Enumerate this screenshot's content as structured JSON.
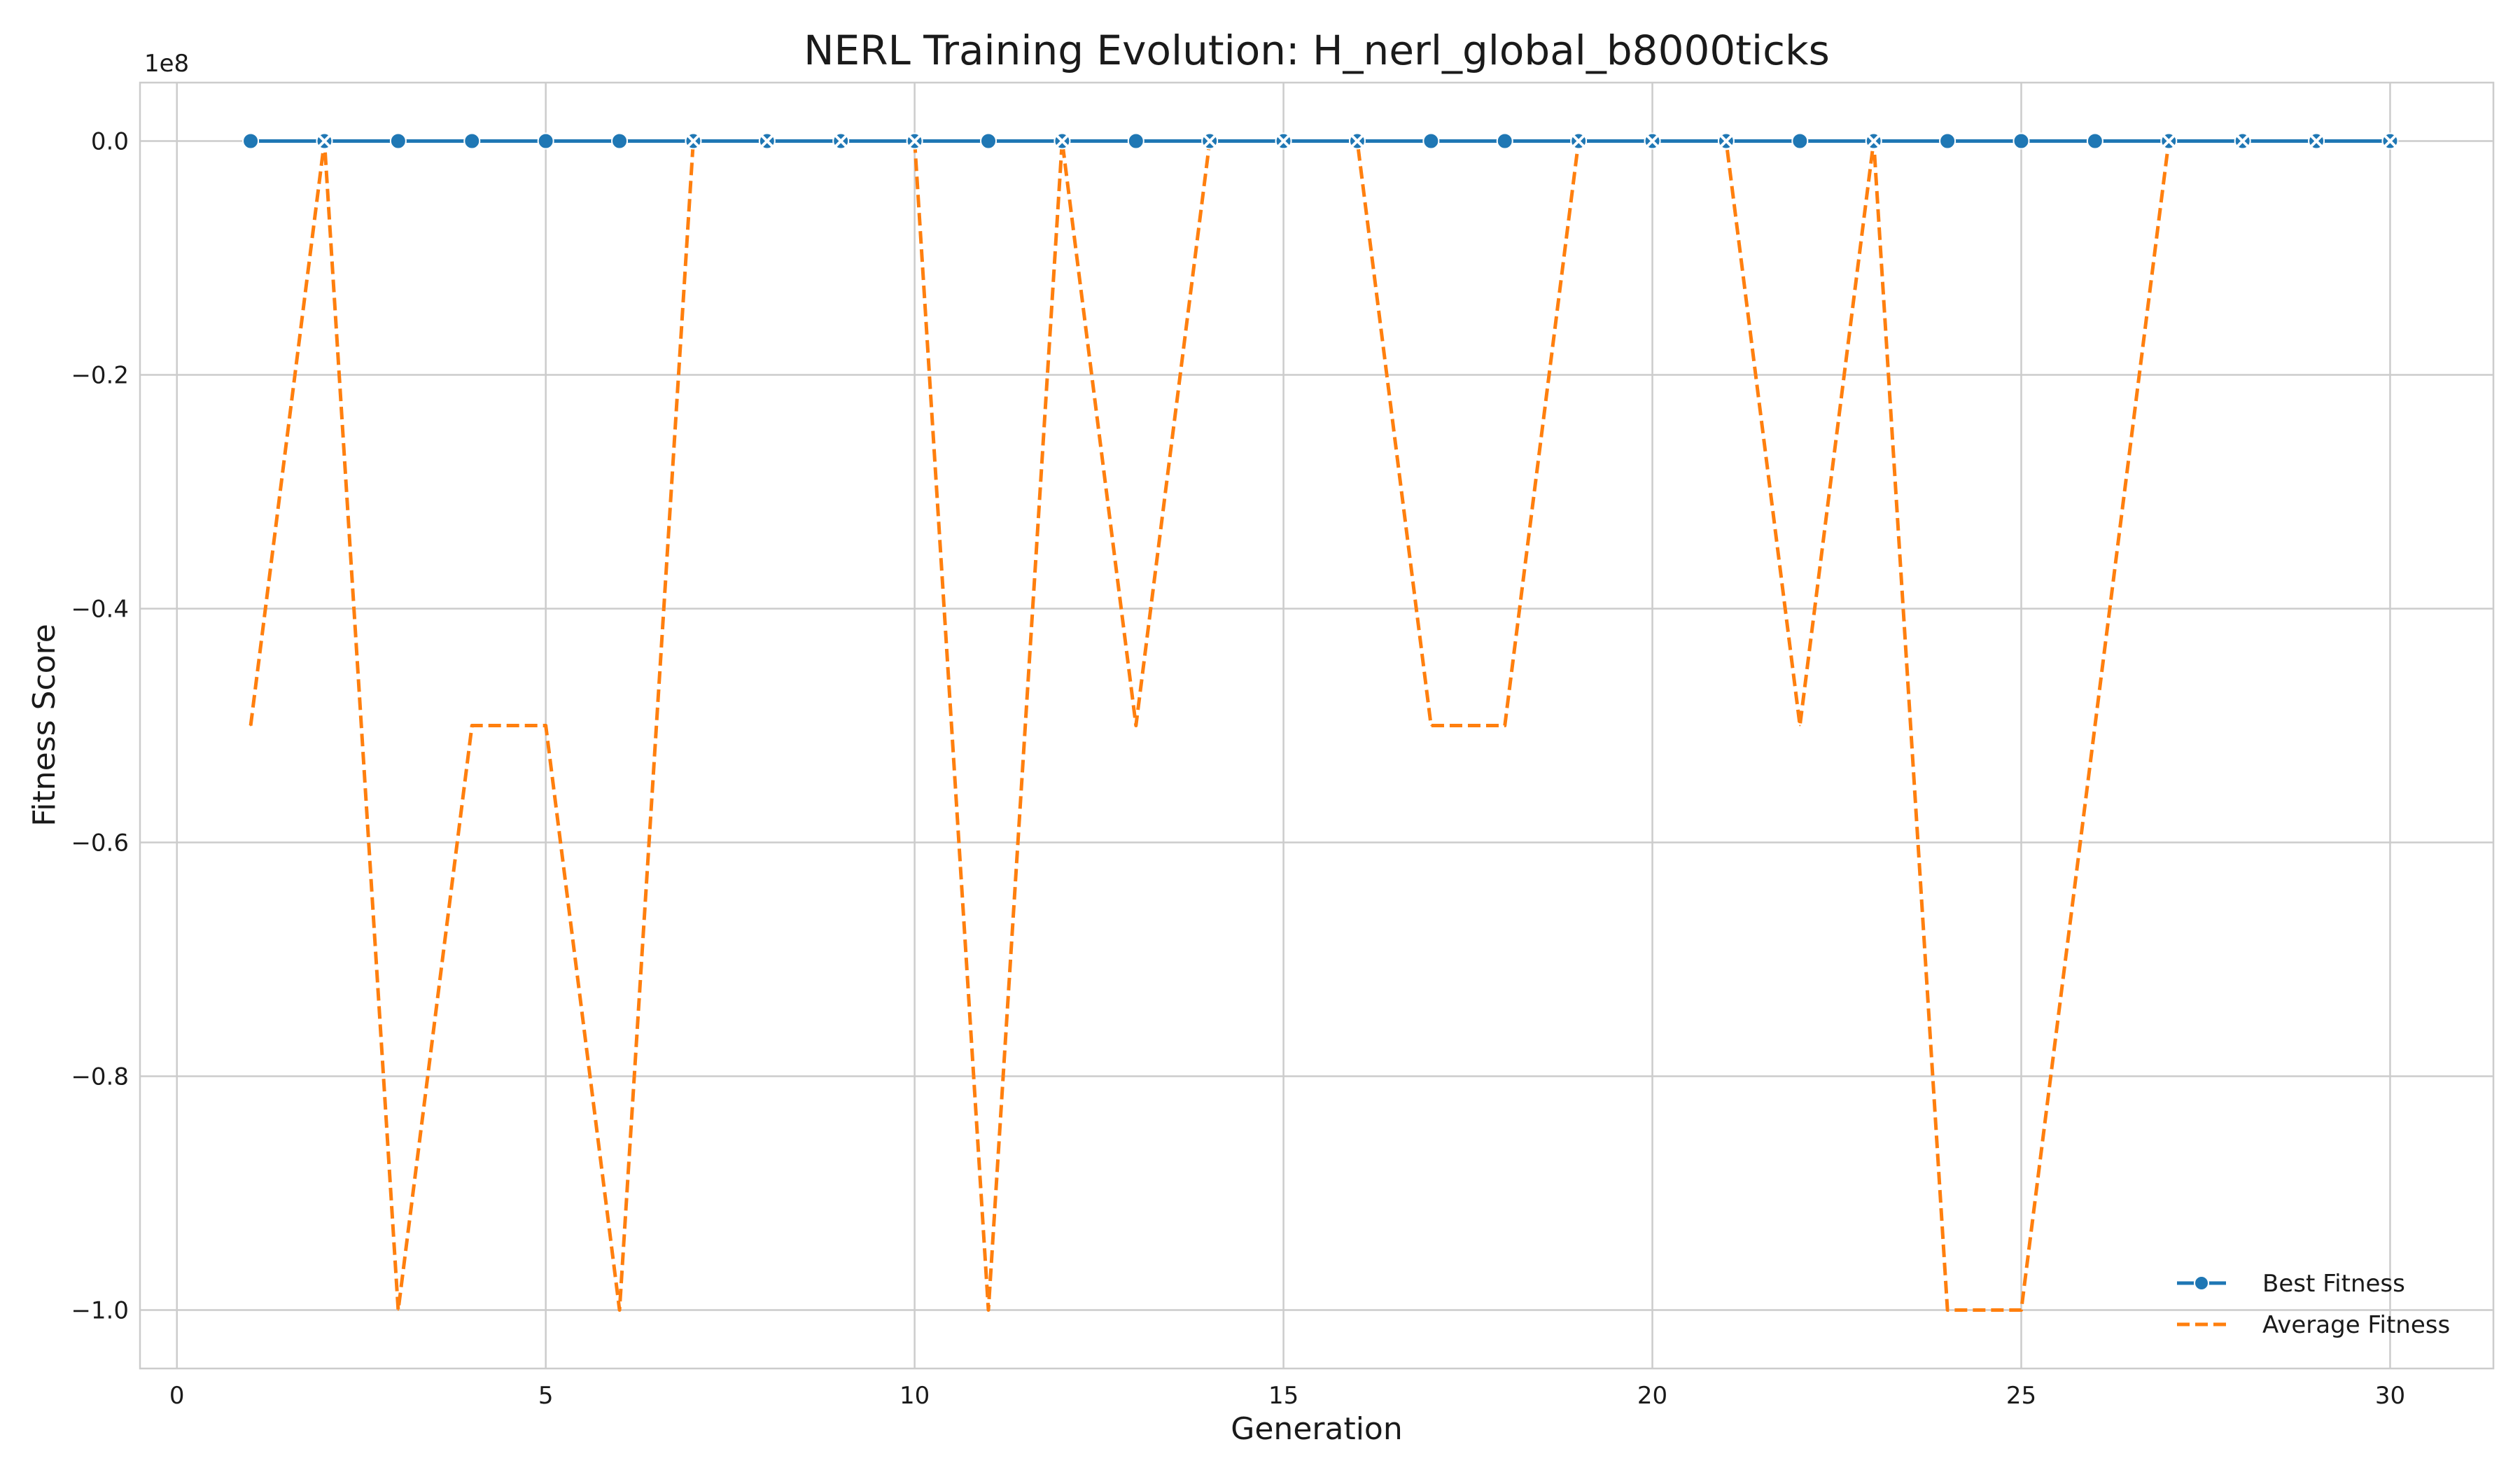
{
  "chart_data": {
    "type": "line",
    "title": "NERL Training Evolution: H_nerl_global_b8000ticks",
    "xlabel": "Generation",
    "ylabel": "Fitness Score",
    "y_offset_label": "1e8",
    "y_scale_factor": 100000000,
    "xlim": [
      -0.5,
      31.4
    ],
    "ylim": [
      -105000000,
      5000000
    ],
    "x_ticks": [
      0,
      5,
      10,
      15,
      20,
      25,
      30
    ],
    "x_tick_labels": [
      "0",
      "5",
      "10",
      "15",
      "20",
      "25",
      "30"
    ],
    "y_ticks": [
      0,
      -20000000,
      -40000000,
      -60000000,
      -80000000,
      -100000000
    ],
    "y_tick_labels": [
      "0.0",
      "−0.2",
      "−0.4",
      "−0.6",
      "−0.8",
      "−1.0"
    ],
    "grid": true,
    "legend_position": "bottom-right",
    "x": [
      1,
      2,
      3,
      4,
      5,
      6,
      7,
      8,
      9,
      10,
      11,
      12,
      13,
      14,
      15,
      16,
      17,
      18,
      19,
      20,
      21,
      22,
      23,
      24,
      25,
      26,
      27,
      28,
      29,
      30
    ],
    "series": [
      {
        "name": "Best Fitness",
        "color": "#1f77b4",
        "style": "solid",
        "marker": "circle",
        "values": [
          0,
          0,
          0,
          0,
          0,
          0,
          0,
          0,
          0,
          0,
          0,
          0,
          0,
          0,
          0,
          0,
          0,
          0,
          0,
          0,
          0,
          0,
          0,
          0,
          0,
          0,
          0,
          0,
          0,
          0
        ]
      },
      {
        "name": "Average Fitness",
        "color": "#ff7f0e",
        "style": "dashed",
        "marker": "x",
        "values": [
          -50000000,
          0,
          -100000000,
          -50000000,
          -50000000,
          -100000000,
          0,
          0,
          0,
          0,
          -100000000,
          0,
          -50000000,
          0,
          0,
          0,
          -50000000,
          -50000000,
          0,
          0,
          0,
          -50000000,
          0,
          -100000000,
          -100000000,
          -50000000,
          0,
          0,
          0,
          0
        ]
      }
    ]
  }
}
